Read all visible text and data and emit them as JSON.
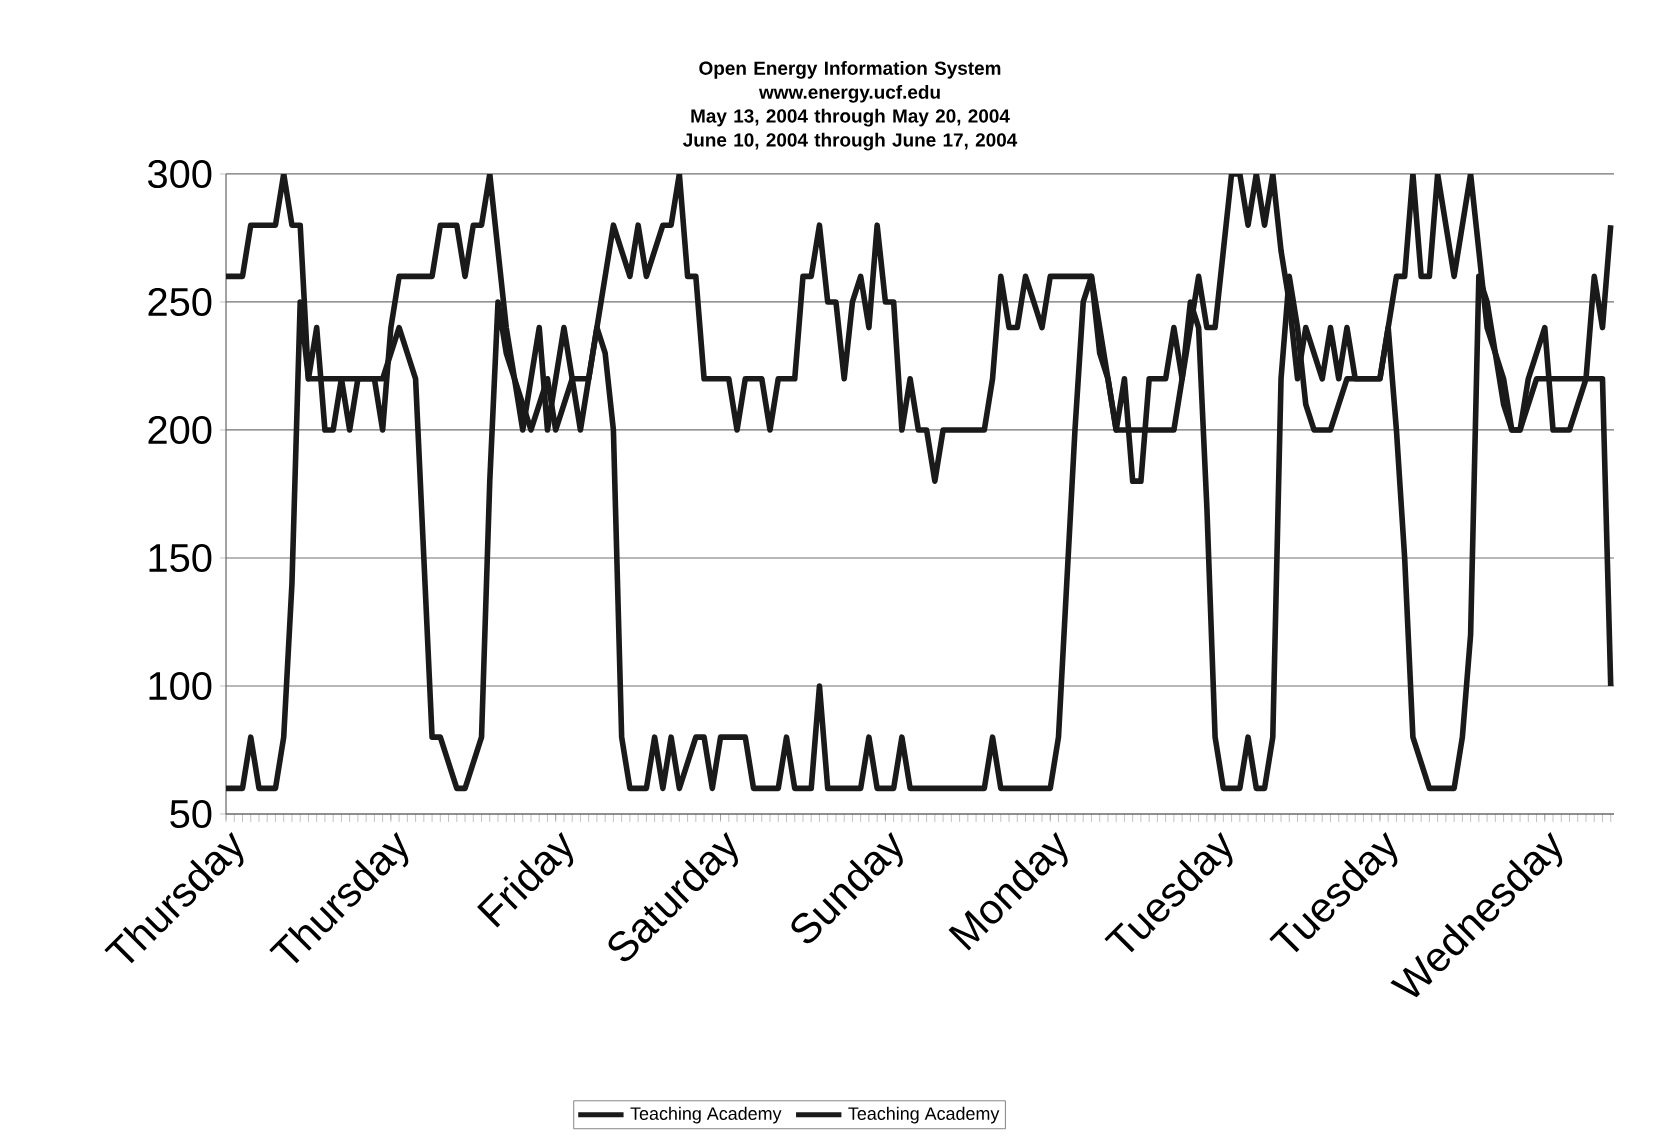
{
  "chart_data": {
    "type": "line",
    "title": "Open Energy Information System\nwww.energy.ucf.edu\nMay 13, 2004 through May 20, 2004\nJune 10, 2004 through June 17, 2004",
    "categories": [
      "Thursday",
      null,
      null,
      null,
      null,
      null,
      null,
      null,
      null,
      null,
      null,
      null,
      null,
      null,
      null,
      null,
      null,
      null,
      null,
      null,
      "Thursday",
      null,
      null,
      null,
      null,
      null,
      null,
      null,
      null,
      null,
      null,
      null,
      null,
      null,
      null,
      null,
      null,
      null,
      null,
      null,
      "Friday",
      null,
      null,
      null,
      null,
      null,
      null,
      null,
      null,
      null,
      null,
      null,
      null,
      null,
      null,
      null,
      null,
      null,
      null,
      null,
      "Saturday",
      null,
      null,
      null,
      null,
      null,
      null,
      null,
      null,
      null,
      null,
      null,
      null,
      null,
      null,
      null,
      null,
      null,
      null,
      null,
      "Sunday",
      null,
      null,
      null,
      null,
      null,
      null,
      null,
      null,
      null,
      null,
      null,
      null,
      null,
      null,
      null,
      null,
      null,
      null,
      null,
      "Monday",
      null,
      null,
      null,
      null,
      null,
      null,
      null,
      null,
      null,
      null,
      null,
      null,
      null,
      null,
      null,
      null,
      null,
      null,
      null,
      "Tuesday",
      null,
      null,
      null,
      null,
      null,
      null,
      null,
      null,
      null,
      null,
      null,
      null,
      null,
      null,
      null,
      null,
      null,
      null,
      null,
      "Tuesday",
      null,
      null,
      null,
      null,
      null,
      null,
      null,
      null,
      null,
      null,
      null,
      null,
      null,
      null,
      null,
      null,
      null,
      null,
      null,
      "Wednesday",
      null,
      null,
      null,
      null,
      null,
      null,
      null,
      null
    ],
    "ylim": [
      50,
      300
    ],
    "yticks": [
      50,
      100,
      150,
      200,
      250,
      300
    ],
    "grid": "y",
    "legend": "bottom",
    "line_style": "solid",
    "series": [
      {
        "name": "Teaching Academy",
        "color": "#1a1a1a",
        "values": [
          260,
          260,
          260,
          280,
          280,
          280,
          280,
          300,
          280,
          280,
          220,
          240,
          200,
          200,
          220,
          200,
          220,
          220,
          220,
          200,
          240,
          260,
          260,
          260,
          260,
          260,
          280,
          280,
          280,
          260,
          280,
          280,
          300,
          270,
          240,
          220,
          200,
          220,
          240,
          200,
          220,
          240,
          220,
          200,
          220,
          240,
          260,
          280,
          270,
          260,
          280,
          260,
          270,
          280,
          280,
          300,
          260,
          260,
          220,
          220,
          220,
          220,
          200,
          220,
          220,
          220,
          200,
          220,
          220,
          220,
          260,
          260,
          280,
          250,
          250,
          220,
          250,
          260,
          240,
          280,
          250,
          250,
          200,
          220,
          200,
          200,
          180,
          200,
          200,
          200,
          200,
          200,
          200,
          220,
          260,
          240,
          240,
          260,
          250,
          240,
          260,
          260,
          260,
          260,
          260,
          260,
          230,
          220,
          200,
          220,
          180,
          180,
          220,
          220,
          220,
          240,
          220,
          240,
          260,
          240,
          240,
          270,
          300,
          300,
          280,
          300,
          280,
          300,
          270,
          250,
          220,
          240,
          230,
          220,
          240,
          220,
          240,
          220,
          220,
          220,
          220,
          240,
          260,
          260,
          300,
          260,
          260,
          300,
          280,
          260,
          280,
          300,
          270,
          240,
          230,
          210,
          200,
          200,
          220,
          230,
          240,
          200,
          200,
          200,
          210,
          220,
          260,
          240,
          280
        ]
      },
      {
        "name": "Teaching Academy",
        "color": "#1a1a1a",
        "values": [
          60,
          60,
          60,
          80,
          60,
          60,
          60,
          80,
          140,
          250,
          220,
          220,
          220,
          220,
          220,
          220,
          220,
          220,
          220,
          220,
          230,
          240,
          230,
          220,
          150,
          80,
          80,
          70,
          60,
          60,
          70,
          80,
          180,
          250,
          230,
          220,
          210,
          200,
          210,
          220,
          200,
          210,
          220,
          220,
          220,
          240,
          230,
          200,
          80,
          60,
          60,
          60,
          80,
          60,
          80,
          60,
          70,
          80,
          80,
          60,
          80,
          80,
          80,
          80,
          60,
          60,
          60,
          60,
          80,
          60,
          60,
          60,
          100,
          60,
          60,
          60,
          60,
          60,
          80,
          60,
          60,
          60,
          80,
          60,
          60,
          60,
          60,
          60,
          60,
          60,
          60,
          60,
          60,
          80,
          60,
          60,
          60,
          60,
          60,
          60,
          60,
          80,
          140,
          200,
          250,
          260,
          240,
          220,
          200,
          200,
          200,
          200,
          200,
          200,
          200,
          200,
          220,
          250,
          240,
          170,
          80,
          60,
          60,
          60,
          80,
          60,
          60,
          80,
          220,
          260,
          240,
          210,
          200,
          200,
          200,
          210,
          220,
          220,
          220,
          220,
          220,
          240,
          200,
          150,
          80,
          70,
          60,
          60,
          60,
          60,
          80,
          120,
          260,
          250,
          230,
          220,
          200,
          200,
          210,
          220,
          220,
          220,
          220,
          220,
          220,
          220,
          220,
          220,
          100
        ]
      }
    ]
  }
}
